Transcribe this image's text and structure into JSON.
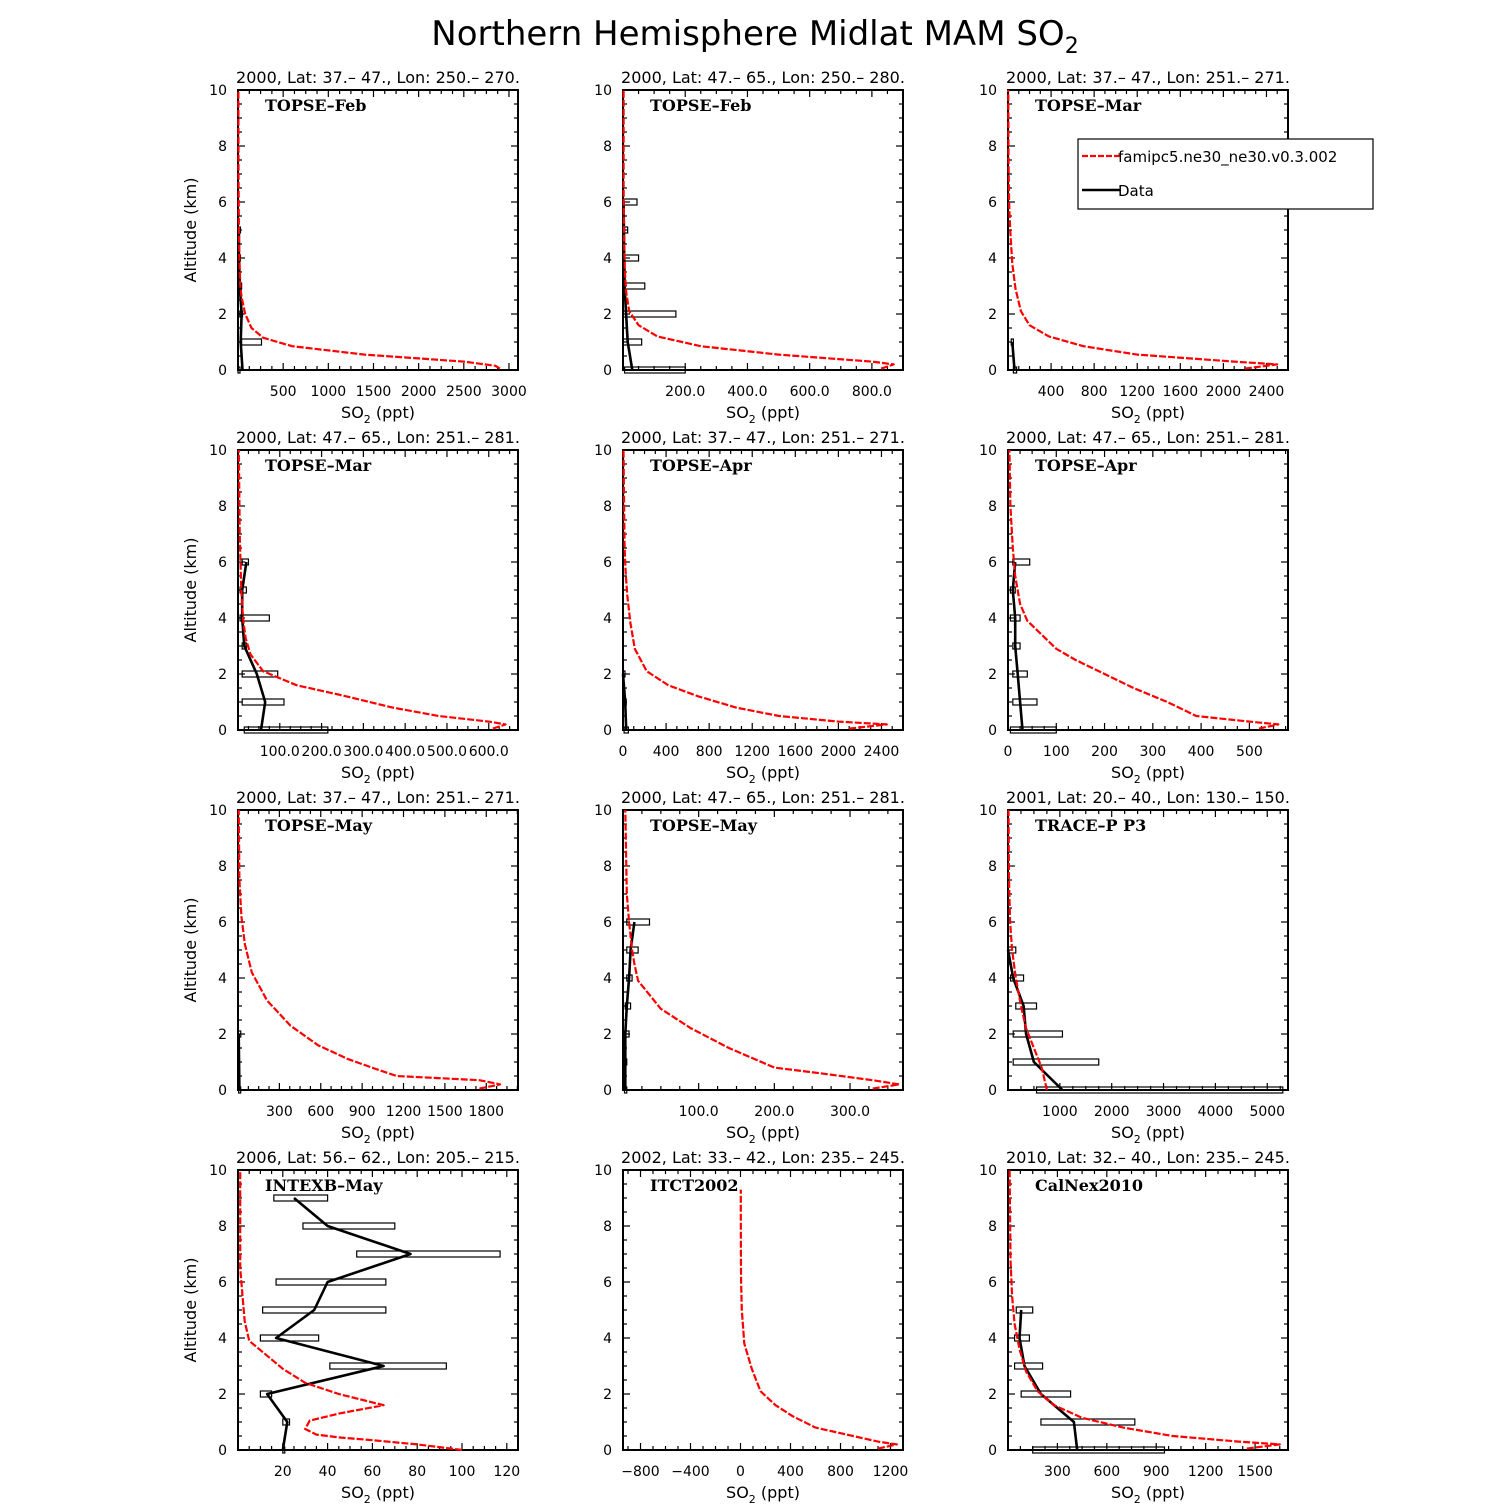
{
  "title": "Northern Hemisphere Midlat MAM SO2",
  "title_main": "Northern Hemisphere Midlat MAM SO",
  "title_sub": "2",
  "legend": {
    "model_label": "famipc5.ne30_ne30.v0.3.002",
    "data_label": "Data",
    "model_color": "#ff0000",
    "data_color": "#000000"
  },
  "axis_labels": {
    "y_label": "Altitude (km)",
    "x_label_pre": "SO",
    "x_label_sub": "2",
    "x_label_post": " (ppt)"
  },
  "chart_data": [
    {
      "type": "line",
      "subtitle": "2000, Lat: 37.– 47., Lon: 250.– 270.",
      "campaign": "TOPSE–Feb",
      "xlim": [
        0,
        3100
      ],
      "ylim": [
        0,
        10
      ],
      "xticks": [
        500,
        1000,
        1500,
        2000,
        2500,
        3000
      ],
      "xtick_labels": [
        "500",
        "1000",
        "1500",
        "2000",
        "2500",
        "3000"
      ],
      "yticks": [
        0,
        2,
        4,
        6,
        8,
        10
      ],
      "model": {
        "x": [
          2900,
          2850,
          2500,
          1400,
          600,
          280,
          150,
          80,
          40,
          25,
          15,
          10,
          8,
          6,
          5,
          4,
          4
        ],
        "y": [
          0.05,
          0.15,
          0.3,
          0.55,
          0.85,
          1.15,
          1.5,
          2.0,
          2.6,
          3.0,
          4.0,
          5.0,
          6.0,
          7.0,
          8.0,
          9.0,
          10.0
        ]
      },
      "data": {
        "x": [
          50,
          30,
          40,
          20,
          10,
          10
        ],
        "y": [
          0,
          1,
          2,
          3,
          4,
          5
        ],
        "xmin": [
          0,
          40,
          20,
          15,
          5,
          5
        ],
        "xmax": [
          0,
          260,
          50,
          40,
          20,
          20
        ]
      }
    },
    {
      "type": "line",
      "subtitle": "2000, Lat: 47.– 65., Lon: 250.– 280.",
      "campaign": "TOPSE–Feb",
      "xlim": [
        0,
        900
      ],
      "ylim": [
        0,
        10
      ],
      "xticks": [
        200,
        400,
        600,
        800
      ],
      "xtick_labels": [
        "200.0",
        "400.0",
        "600.0",
        "800.0"
      ],
      "yticks": [
        0,
        2,
        4,
        6,
        8,
        10
      ],
      "model": {
        "x": [
          830,
          870,
          800,
          500,
          250,
          110,
          50,
          20,
          10,
          6,
          4,
          3,
          2,
          2,
          2
        ],
        "y": [
          0.05,
          0.2,
          0.3,
          0.55,
          0.85,
          1.2,
          1.6,
          2.1,
          2.8,
          3.5,
          4.5,
          5.5,
          6.5,
          8.0,
          10.0
        ]
      },
      "data": {
        "x": [
          30,
          15,
          10,
          5,
          4,
          3,
          2
        ],
        "y": [
          0,
          1,
          2,
          3,
          4,
          5,
          6
        ],
        "xmin": [
          5,
          0,
          0,
          0,
          0,
          0,
          0
        ],
        "xmax": [
          200,
          60,
          170,
          70,
          50,
          15,
          45
        ]
      }
    },
    {
      "type": "line",
      "subtitle": "2000, Lat: 37.– 47., Lon: 251.– 271.",
      "campaign": "TOPSE–Mar",
      "xlim": [
        0,
        2600
      ],
      "ylim": [
        0,
        10
      ],
      "xticks": [
        400,
        800,
        1200,
        1600,
        2000,
        2400
      ],
      "xtick_labels": [
        "400",
        "800",
        "1200",
        "1600",
        "2000",
        "2400"
      ],
      "yticks": [
        0,
        2,
        4,
        6,
        8,
        10
      ],
      "model": {
        "x": [
          2200,
          2500,
          2100,
          1200,
          700,
          380,
          200,
          120,
          70,
          40,
          20,
          10,
          5,
          3
        ],
        "y": [
          0.05,
          0.2,
          0.3,
          0.55,
          0.85,
          1.2,
          1.6,
          2.1,
          2.9,
          3.8,
          5.0,
          6.0,
          7.5,
          10.0
        ]
      },
      "data": {
        "x": [
          60,
          40
        ],
        "y": [
          0,
          1
        ],
        "xmin": [
          50,
          30
        ],
        "xmax": [
          80,
          50
        ]
      },
      "legend_box": true
    },
    {
      "type": "line",
      "subtitle": "2000, Lat: 47.– 65., Lon: 251.– 281.",
      "campaign": "TOPSE–Mar",
      "xlim": [
        0,
        670
      ],
      "ylim": [
        0,
        10
      ],
      "xticks": [
        100,
        200,
        300,
        400,
        500,
        600
      ],
      "xtick_labels": [
        "100.0",
        "200.0",
        "300.0",
        "400.0",
        "500.0",
        "600.0"
      ],
      "yticks": [
        0,
        2,
        4,
        6,
        8,
        10
      ],
      "model": {
        "x": [
          610,
          640,
          600,
          480,
          370,
          260,
          140,
          60,
          30,
          18,
          12,
          8,
          6,
          4,
          3,
          2
        ],
        "y": [
          0.05,
          0.2,
          0.3,
          0.5,
          0.8,
          1.2,
          1.6,
          2.1,
          2.7,
          3.3,
          4.0,
          5.0,
          6.0,
          7.0,
          8.5,
          10.0
        ]
      },
      "data": {
        "x": [
          55,
          65,
          45,
          15,
          10,
          10,
          20
        ],
        "y": [
          0,
          1,
          2,
          3,
          4,
          5,
          6
        ],
        "xmin": [
          15,
          10,
          10,
          10,
          5,
          5,
          10
        ],
        "xmax": [
          215,
          110,
          95,
          20,
          75,
          20,
          25
        ]
      }
    },
    {
      "type": "line",
      "subtitle": "2000, Lat: 37.– 47., Lon: 251.– 271.",
      "campaign": "TOPSE–Apr",
      "xlim": [
        0,
        2600
      ],
      "ylim": [
        0,
        10
      ],
      "xticks": [
        0,
        400,
        800,
        1200,
        1600,
        2000,
        2400
      ],
      "xtick_labels": [
        "0",
        "400",
        "800",
        "1200",
        "1600",
        "2000",
        "2400"
      ],
      "yticks": [
        0,
        2,
        4,
        6,
        8,
        10
      ],
      "model": {
        "x": [
          2100,
          2450,
          2000,
          1450,
          1050,
          700,
          420,
          220,
          110,
          70,
          40,
          25,
          15,
          10,
          5
        ],
        "y": [
          0.05,
          0.2,
          0.3,
          0.5,
          0.8,
          1.2,
          1.6,
          2.1,
          2.9,
          3.8,
          4.8,
          5.6,
          6.5,
          8.0,
          10.0
        ]
      },
      "data": {
        "x": [
          30,
          20,
          0
        ],
        "y": [
          0,
          1,
          2
        ],
        "xmin": [
          10,
          10,
          0
        ],
        "xmax": [
          50,
          30,
          10
        ]
      }
    },
    {
      "type": "line",
      "subtitle": "2000, Lat: 47.– 65., Lon: 251.– 281.",
      "campaign": "TOPSE–Apr",
      "xlim": [
        0,
        580
      ],
      "ylim": [
        0,
        10
      ],
      "xticks": [
        0,
        100,
        200,
        300,
        400,
        500
      ],
      "xtick_labels": [
        "0",
        "100",
        "200",
        "300",
        "400",
        "500"
      ],
      "yticks": [
        0,
        2,
        4,
        6,
        8,
        10
      ],
      "model": {
        "x": [
          520,
          560,
          500,
          390,
          330,
          260,
          200,
          140,
          100,
          40,
          25,
          15,
          10,
          5,
          3
        ],
        "y": [
          0.05,
          0.2,
          0.3,
          0.5,
          1.0,
          1.5,
          2.0,
          2.5,
          2.9,
          3.9,
          4.5,
          5.5,
          6.5,
          8.0,
          10.0
        ]
      },
      "data": {
        "x": [
          30,
          25,
          20,
          15,
          15,
          10,
          15
        ],
        "y": [
          0,
          1,
          2,
          3,
          4,
          5,
          6
        ],
        "xmin": [
          5,
          10,
          10,
          10,
          5,
          5,
          10
        ],
        "xmax": [
          100,
          60,
          40,
          25,
          25,
          15,
          45
        ]
      }
    },
    {
      "type": "line",
      "subtitle": "2000, Lat: 37.– 47., Lon: 251.– 271.",
      "campaign": "TOPSE–May",
      "xlim": [
        0,
        2030
      ],
      "ylim": [
        0,
        10
      ],
      "xticks": [
        300,
        600,
        900,
        1200,
        1500,
        1800
      ],
      "xtick_labels": [
        "300",
        "600",
        "900",
        "1200",
        "1500",
        "1800"
      ],
      "yticks": [
        0,
        2,
        4,
        6,
        8,
        10
      ],
      "model": {
        "x": [
          1750,
          1900,
          1750,
          1150,
          1000,
          800,
          580,
          380,
          210,
          100,
          50,
          25,
          10,
          5
        ],
        "y": [
          0.05,
          0.2,
          0.35,
          0.5,
          0.75,
          1.1,
          1.6,
          2.3,
          3.2,
          4.2,
          5.2,
          6.2,
          7.5,
          10.0
        ]
      },
      "data": {
        "x": [
          10,
          5
        ],
        "y": [
          0,
          2
        ],
        "xmin": [
          5,
          0
        ],
        "xmax": [
          15,
          20
        ]
      }
    },
    {
      "type": "line",
      "subtitle": "2000, Lat: 47.– 65., Lon: 251.– 281.",
      "campaign": "TOPSE–May",
      "xlim": [
        0,
        370
      ],
      "ylim": [
        0,
        10
      ],
      "xticks": [
        100,
        200,
        300
      ],
      "xtick_labels": [
        "100.0",
        "200.0",
        "300.0"
      ],
      "yticks": [
        0,
        2,
        4,
        6,
        8,
        10
      ],
      "model": {
        "x": [
          330,
          365,
          330,
          260,
          200,
          140,
          90,
          50,
          20,
          15,
          12,
          8,
          5,
          3
        ],
        "y": [
          0.05,
          0.2,
          0.35,
          0.6,
          0.8,
          1.5,
          2.2,
          2.9,
          3.9,
          4.5,
          5.0,
          6.0,
          7.0,
          10.0
        ]
      },
      "data": {
        "x": [
          3,
          3,
          3,
          5,
          8,
          10,
          15
        ],
        "y": [
          0,
          1,
          2,
          3,
          4,
          5,
          6
        ],
        "xmin": [
          2,
          2,
          2,
          3,
          5,
          5,
          5
        ],
        "xmax": [
          5,
          5,
          8,
          10,
          12,
          20,
          35
        ]
      }
    },
    {
      "type": "line",
      "subtitle": "2001, Lat: 20.– 40., Lon: 130.– 150.",
      "campaign": "TRACE–P P3",
      "xlim": [
        0,
        5400
      ],
      "ylim": [
        0,
        10
      ],
      "xticks": [
        1000,
        2000,
        3000,
        4000,
        5000
      ],
      "xtick_labels": [
        "1000",
        "2000",
        "3000",
        "4000",
        "5000"
      ],
      "yticks": [
        0,
        2,
        4,
        6,
        8,
        10
      ],
      "model": {
        "x": [
          750,
          650,
          500,
          350,
          250,
          150,
          80,
          40,
          20,
          10
        ],
        "y": [
          0.0,
          0.8,
          1.5,
          2.2,
          3.0,
          4.0,
          5.0,
          6.0,
          7.5,
          10.0
        ]
      },
      "data": {
        "x": [
          1050,
          500,
          350,
          300,
          100,
          0
        ],
        "y": [
          0,
          1,
          2,
          3,
          4,
          5
        ],
        "xmin": [
          550,
          100,
          100,
          150,
          50,
          0
        ],
        "xmax": [
          5300,
          1750,
          1050,
          550,
          300,
          150
        ]
      },
      "model_dashed": true
    },
    {
      "type": "line",
      "subtitle": "2006, Lat: 56.– 62., Lon: 205.– 215.",
      "campaign": "INTEXB–May",
      "xlim": [
        0,
        125
      ],
      "ylim": [
        0,
        10
      ],
      "xticks": [
        20,
        40,
        60,
        80,
        100,
        120
      ],
      "xtick_labels": [
        "20",
        "40",
        "60",
        "80",
        "100",
        "120"
      ],
      "yticks": [
        0,
        2,
        4,
        6,
        8,
        10
      ],
      "model": {
        "x": [
          100,
          80,
          60,
          45,
          35,
          30,
          32,
          45,
          65,
          45,
          30,
          20,
          5,
          3,
          2,
          1,
          1,
          1
        ],
        "y": [
          0.0,
          0.2,
          0.35,
          0.45,
          0.55,
          0.75,
          1.05,
          1.3,
          1.6,
          2.0,
          2.4,
          2.9,
          3.9,
          4.6,
          5.5,
          6.5,
          8.0,
          10.0
        ]
      },
      "data": {
        "x": [
          20,
          22,
          13,
          65,
          17,
          34,
          40,
          77,
          40,
          25
        ],
        "y": [
          0,
          1,
          2,
          3,
          4,
          5,
          6,
          7,
          8,
          9
        ],
        "xmin": [
          20,
          20,
          10,
          41,
          10,
          11,
          17,
          53,
          29,
          16
        ],
        "xmax": [
          20,
          23,
          15,
          93,
          36,
          66,
          66,
          117,
          70,
          40
        ]
      }
    },
    {
      "type": "line",
      "subtitle": "2002, Lat: 33.– 42., Lon: 235.– 245.",
      "campaign": "ITCT2002",
      "xlim": [
        -940,
        1300
      ],
      "ylim": [
        0,
        10
      ],
      "xticks": [
        -800,
        -400,
        0,
        400,
        800,
        1200
      ],
      "xtick_labels": [
        "−800",
        "−400",
        "0",
        "400",
        "800",
        "1200"
      ],
      "yticks": [
        0,
        2,
        4,
        6,
        8,
        10
      ],
      "model": {
        "x": [
          1100,
          1250,
          1100,
          900,
          600,
          420,
          280,
          160,
          90,
          30,
          10,
          5,
          3,
          2,
          2
        ],
        "y": [
          0.05,
          0.2,
          0.3,
          0.5,
          0.8,
          1.2,
          1.6,
          2.1,
          2.9,
          3.8,
          5.0,
          6.0,
          7.0,
          8.5,
          9.3
        ]
      },
      "data": null
    },
    {
      "type": "line",
      "subtitle": "2010, Lat: 32.– 40., Lon: 235.– 245.",
      "campaign": "CalNex2010",
      "xlim": [
        0,
        1700
      ],
      "ylim": [
        0,
        10
      ],
      "xticks": [
        300,
        600,
        900,
        1200,
        1500
      ],
      "xtick_labels": [
        "300",
        "600",
        "900",
        "1200",
        "1500"
      ],
      "yticks": [
        0,
        2,
        4,
        6,
        8,
        10
      ],
      "model": {
        "x": [
          1450,
          1650,
          1400,
          1000,
          700,
          450,
          280,
          180,
          110,
          70,
          40,
          25,
          15,
          10
        ],
        "y": [
          0.05,
          0.2,
          0.3,
          0.5,
          0.8,
          1.15,
          1.6,
          2.1,
          2.8,
          3.6,
          4.5,
          5.5,
          6.8,
          10.0
        ]
      },
      "data": {
        "x": [
          420,
          400,
          200,
          100,
          70,
          80
        ],
        "y": [
          0,
          1,
          2,
          3,
          4,
          5
        ],
        "xmin": [
          150,
          200,
          80,
          40,
          40,
          50
        ],
        "xmax": [
          950,
          770,
          380,
          210,
          130,
          150
        ]
      }
    }
  ]
}
